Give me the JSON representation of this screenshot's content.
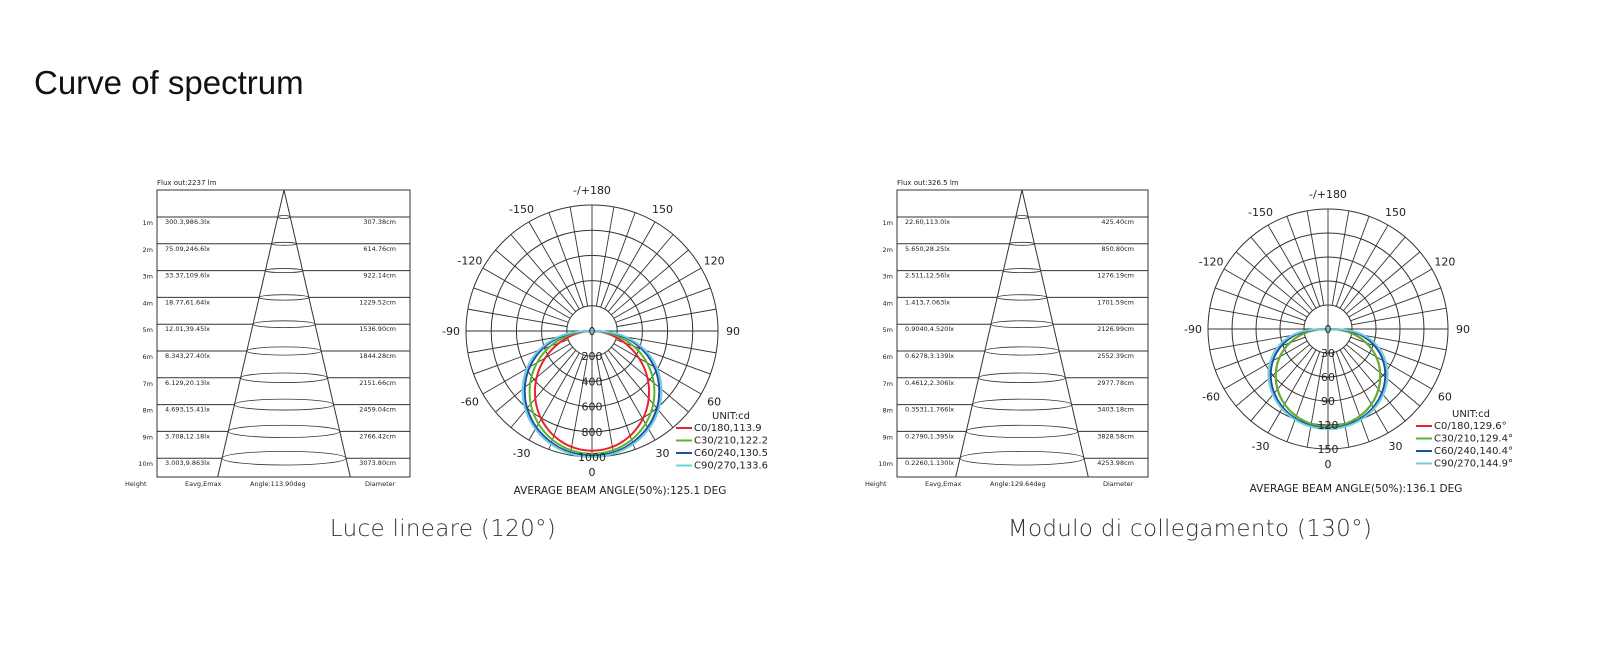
{
  "page": {
    "title": "Curve of spectrum"
  },
  "colors": {
    "C0": "#e8232a",
    "C30": "#5ab52e",
    "C60": "#1d4fa0",
    "C90": "#6fcde0",
    "grid": "#333333"
  },
  "chart_data": [
    {
      "type": "table",
      "caption": "Luce lineare (120°)",
      "flux": "Flux out:2237 lm",
      "columns": [
        "Height",
        "Eavg,Emax",
        "Angle:113.90deg",
        "Diameter"
      ],
      "rows": [
        {
          "height": "1m",
          "e": "300.3,986.3lx",
          "diameter": "307.38cm"
        },
        {
          "height": "2m",
          "e": "75.09,246.6lx",
          "diameter": "614.76cm"
        },
        {
          "height": "3m",
          "e": "33.37,109.6lx",
          "diameter": "922.14cm"
        },
        {
          "height": "4m",
          "e": "18.77,61.64lx",
          "diameter": "1229.52cm"
        },
        {
          "height": "5m",
          "e": "12.01,39.45lx",
          "diameter": "1536.90cm"
        },
        {
          "height": "6m",
          "e": "8.343,27.40lx",
          "diameter": "1844.28cm"
        },
        {
          "height": "7m",
          "e": "6.129,20.13lx",
          "diameter": "2151.66cm"
        },
        {
          "height": "8m",
          "e": "4.693,15.41lx",
          "diameter": "2459.04cm"
        },
        {
          "height": "9m",
          "e": "3.708,12.18lx",
          "diameter": "2766.42cm"
        },
        {
          "height": "10m",
          "e": "3.003,9.863lx",
          "diameter": "3073.80cm"
        }
      ]
    },
    {
      "type": "polar",
      "angle_labels": {
        "0": "0",
        "30": "30",
        "60": "60",
        "90": "90",
        "120": "120",
        "150": "150",
        "180": "-/+180",
        "-30": "-30",
        "-60": "-60",
        "-90": "-90",
        "-120": "-120",
        "-150": "-150"
      },
      "radial_ticks": [
        "0",
        "200",
        "400",
        "600",
        "800",
        "1000"
      ],
      "rmax": 1000,
      "unit": "UNIT:cd",
      "series": [
        {
          "name": "C0/180,113.9",
          "key": "C0",
          "beam_angle": 113.9,
          "peak_cd": 950
        },
        {
          "name": "C30/210,122.2",
          "key": "C30",
          "beam_angle": 122.2,
          "peak_cd": 975
        },
        {
          "name": "C60/240,130.5",
          "key": "C60",
          "beam_angle": 130.5,
          "peak_cd": 990
        },
        {
          "name": "C90/270,133.6",
          "key": "C90",
          "beam_angle": 133.6,
          "peak_cd": 1000
        }
      ],
      "footer": "AVERAGE BEAM ANGLE(50%):125.1 DEG"
    },
    {
      "type": "table",
      "caption": "Modulo di collegamento (130°)",
      "flux": "Flux out:326.5 lm",
      "columns": [
        "Height",
        "Eavg,Emax",
        "Angle:129.64deg",
        "Diameter"
      ],
      "rows": [
        {
          "height": "1m",
          "e": "22.60,113.0lx",
          "diameter": "425.40cm"
        },
        {
          "height": "2m",
          "e": "5.650,28.25lx",
          "diameter": "850.80cm"
        },
        {
          "height": "3m",
          "e": "2.511,12.56lx",
          "diameter": "1276.19cm"
        },
        {
          "height": "4m",
          "e": "1.413,7.063lx",
          "diameter": "1701.59cm"
        },
        {
          "height": "5m",
          "e": "0.9040,4.520lx",
          "diameter": "2126.99cm"
        },
        {
          "height": "6m",
          "e": "0.6278,3.139lx",
          "diameter": "2552.39cm"
        },
        {
          "height": "7m",
          "e": "0.4612,2.306lx",
          "diameter": "2977.78cm"
        },
        {
          "height": "8m",
          "e": "0.3531,1.766lx",
          "diameter": "3403.18cm"
        },
        {
          "height": "9m",
          "e": "0.2790,1.395lx",
          "diameter": "3828.58cm"
        },
        {
          "height": "10m",
          "e": "0.2260,1.130lx",
          "diameter": "4253.98cm"
        }
      ]
    },
    {
      "type": "polar",
      "angle_labels": {
        "0": "0",
        "30": "30",
        "60": "60",
        "90": "90",
        "120": "120",
        "150": "150",
        "180": "-/+180",
        "-30": "-30",
        "-60": "-60",
        "-90": "-90",
        "-120": "-120",
        "-150": "-150"
      },
      "radial_ticks": [
        "0",
        "30",
        "60",
        "90",
        "120",
        "150"
      ],
      "rmax": 150,
      "unit": "UNIT:cd",
      "series": [
        {
          "name": "C0/180,129.6°",
          "key": "C0",
          "beam_angle": 129.6,
          "peak_cd": 122
        },
        {
          "name": "C30/210,129.4°",
          "key": "C30",
          "beam_angle": 129.4,
          "peak_cd": 122
        },
        {
          "name": "C60/240,140.4°",
          "key": "C60",
          "beam_angle": 140.4,
          "peak_cd": 124
        },
        {
          "name": "C90/270,144.9°",
          "key": "C90",
          "beam_angle": 144.9,
          "peak_cd": 125
        }
      ],
      "footer": "AVERAGE BEAM ANGLE(50%):136.1 DEG"
    }
  ]
}
